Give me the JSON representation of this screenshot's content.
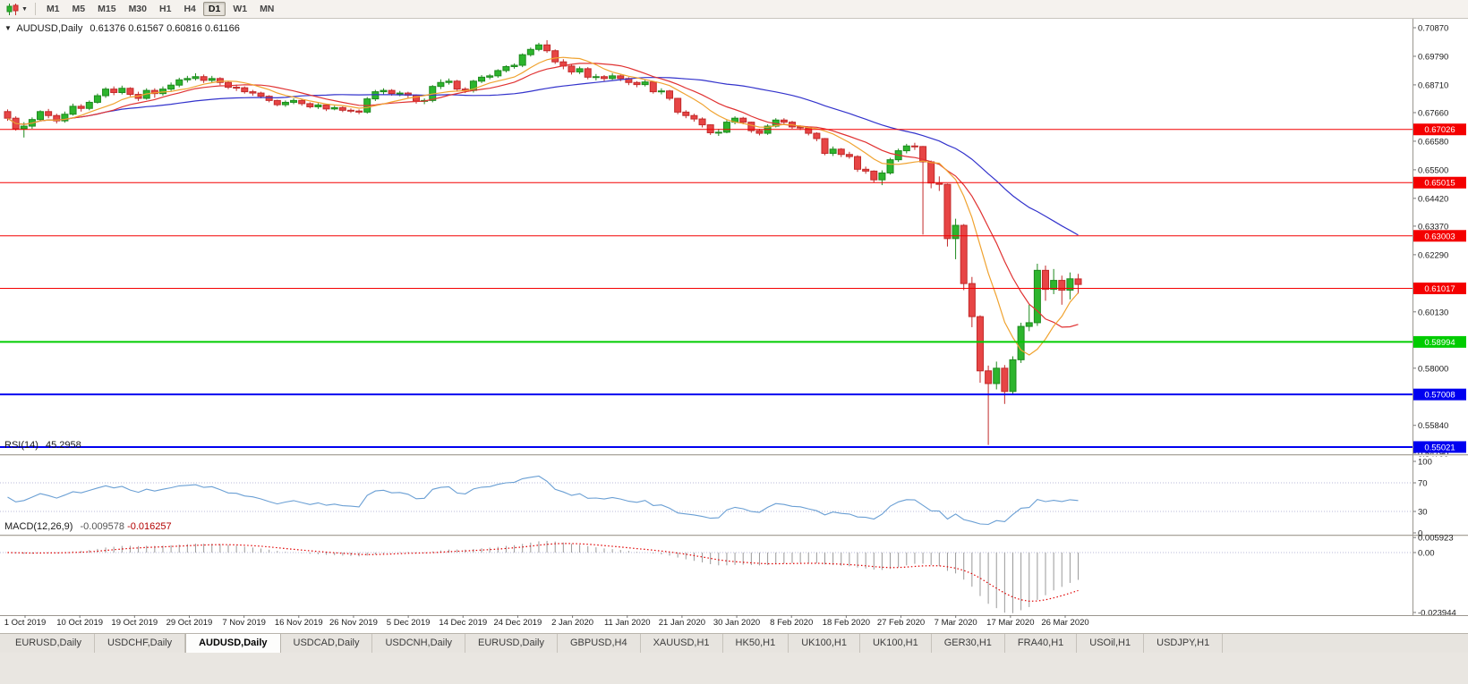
{
  "toolbar": {
    "chart_menu_tooltip": "Charts",
    "timeframes": [
      "M1",
      "M5",
      "M15",
      "M30",
      "H1",
      "H4",
      "D1",
      "W1",
      "MN"
    ],
    "active_timeframe": "D1"
  },
  "chart": {
    "symbol_period": "AUDUSD,Daily",
    "ohlc": {
      "open": "0.61376",
      "high": "0.61567",
      "low": "0.60816",
      "close": "0.61166"
    }
  },
  "rsi_panel": {
    "label": "RSI(14)",
    "value": "45.2958"
  },
  "macd_panel": {
    "label": "MACD(12,26,9)",
    "main_value": "-0.009578",
    "signal_value": "-0.016257"
  },
  "colors": {
    "up_fill": "#2db52d",
    "up_stroke": "#1e8a1e",
    "down_fill": "#e74545",
    "down_stroke": "#c22a2a",
    "rsi_line": "#6a9fd4",
    "rsi_levels": "#b9b9d9",
    "macd_hist": "#9a9a9a",
    "macd_signal": "#e00000",
    "axis_text": "#1a1a1a",
    "separator": "#a8a49d"
  },
  "chart_data": {
    "type": "candlestick",
    "symbol": "AUDUSD",
    "timeframe": "Daily",
    "price_axis": {
      "ticks": [
        "0.70870",
        "0.69790",
        "0.68710",
        "0.67660",
        "0.66580",
        "0.65500",
        "0.64420",
        "0.63370",
        "0.62290",
        "0.60130",
        "0.58000",
        "0.55840",
        "0.54790"
      ]
    },
    "time_axis": {
      "labels": [
        "1 Oct 2019",
        "10 Oct 2019",
        "19 Oct 2019",
        "29 Oct 2019",
        "7 Nov 2019",
        "16 Nov 2019",
        "26 Nov 2019",
        "5 Dec 2019",
        "14 Dec 2019",
        "24 Dec 2019",
        "2 Jan 2020",
        "11 Jan 2020",
        "21 Jan 2020",
        "30 Jan 2020",
        "8 Feb 2020",
        "18 Feb 2020",
        "27 Feb 2020",
        "7 Mar 2020",
        "17 Mar 2020",
        "26 Mar 2020"
      ]
    },
    "levels": [
      {
        "price": 0.67026,
        "label": "0.67026",
        "color": "#f40000",
        "width": 1
      },
      {
        "price": 0.65015,
        "label": "0.65015",
        "color": "#f40000",
        "width": 1
      },
      {
        "price": 0.63003,
        "label": "0.63003",
        "color": "#f40000",
        "width": 1
      },
      {
        "price": 0.61017,
        "label": "0.61017",
        "color": "#f40000",
        "width": 1
      },
      {
        "price": 0.58994,
        "label": "0.58994",
        "color": "#00cc00",
        "width": 2
      },
      {
        "price": 0.57008,
        "label": "0.57008",
        "color": "#0000f0",
        "width": 2
      },
      {
        "price": 0.55021,
        "label": "0.55021",
        "color": "#0000f0",
        "width": 2
      }
    ],
    "moving_averages": [
      {
        "period": 34,
        "color": "#3333cc"
      },
      {
        "period": 13,
        "color": "#e03232"
      },
      {
        "period": 8,
        "color": "#f0a330"
      }
    ],
    "rsi": {
      "period": 14,
      "levels": [
        70,
        30
      ],
      "axis_labels": [
        "100",
        "70",
        "30",
        "0"
      ],
      "axis_values": [
        100,
        70,
        30,
        0
      ]
    },
    "macd": {
      "fast": 12,
      "slow": 26,
      "signal": 9,
      "axis": [
        {
          "v": 0.005923,
          "t": "0.005923"
        },
        {
          "v": 0,
          "t": "0.00"
        },
        {
          "v": -0.023944,
          "t": "-0.023944"
        }
      ]
    },
    "candles": [
      [
        0.677,
        0.6778,
        0.6735,
        0.6745
      ],
      [
        0.6745,
        0.6752,
        0.6698,
        0.6705
      ],
      [
        0.6705,
        0.673,
        0.6672,
        0.6715
      ],
      [
        0.6715,
        0.6748,
        0.6705,
        0.674
      ],
      [
        0.674,
        0.6775,
        0.6735,
        0.677
      ],
      [
        0.677,
        0.678,
        0.6745,
        0.6755
      ],
      [
        0.6755,
        0.6762,
        0.6725,
        0.6735
      ],
      [
        0.6735,
        0.677,
        0.6728,
        0.676
      ],
      [
        0.676,
        0.68,
        0.6755,
        0.679
      ],
      [
        0.679,
        0.6798,
        0.677,
        0.6782
      ],
      [
        0.6782,
        0.6812,
        0.6775,
        0.6805
      ],
      [
        0.6805,
        0.6838,
        0.68,
        0.683
      ],
      [
        0.683,
        0.6862,
        0.6822,
        0.6855
      ],
      [
        0.6855,
        0.6865,
        0.6832,
        0.6842
      ],
      [
        0.6842,
        0.6868,
        0.6835,
        0.6858
      ],
      [
        0.6858,
        0.6862,
        0.6828,
        0.6835
      ],
      [
        0.6835,
        0.6845,
        0.681,
        0.682
      ],
      [
        0.682,
        0.6858,
        0.6815,
        0.685
      ],
      [
        0.685,
        0.6858,
        0.6822,
        0.6838
      ],
      [
        0.6838,
        0.6865,
        0.683,
        0.6855
      ],
      [
        0.6855,
        0.688,
        0.6848,
        0.687
      ],
      [
        0.687,
        0.6898,
        0.6862,
        0.689
      ],
      [
        0.689,
        0.6905,
        0.688,
        0.6895
      ],
      [
        0.6895,
        0.6915,
        0.6888,
        0.6902
      ],
      [
        0.6902,
        0.691,
        0.6878,
        0.6888
      ],
      [
        0.6888,
        0.6905,
        0.688,
        0.6895
      ],
      [
        0.6895,
        0.69,
        0.687,
        0.688
      ],
      [
        0.688,
        0.6885,
        0.6855,
        0.6862
      ],
      [
        0.6862,
        0.6872,
        0.6848,
        0.686
      ],
      [
        0.686,
        0.6865,
        0.6838,
        0.6845
      ],
      [
        0.6845,
        0.6852,
        0.683,
        0.684
      ],
      [
        0.684,
        0.6845,
        0.682,
        0.6828
      ],
      [
        0.6828,
        0.6832,
        0.6805,
        0.6812
      ],
      [
        0.6812,
        0.6815,
        0.679,
        0.6796
      ],
      [
        0.6796,
        0.6812,
        0.6788,
        0.6805
      ],
      [
        0.6805,
        0.682,
        0.6798,
        0.6812
      ],
      [
        0.6812,
        0.6818,
        0.6792,
        0.68
      ],
      [
        0.68,
        0.6805,
        0.6782,
        0.6788
      ],
      [
        0.6788,
        0.6802,
        0.678,
        0.6795
      ],
      [
        0.6795,
        0.6798,
        0.6772,
        0.678
      ],
      [
        0.678,
        0.6792,
        0.6775,
        0.6785
      ],
      [
        0.6785,
        0.679,
        0.6768,
        0.6775
      ],
      [
        0.6775,
        0.6782,
        0.6765,
        0.6772
      ],
      [
        0.6772,
        0.6778,
        0.676,
        0.6768
      ],
      [
        0.6768,
        0.6825,
        0.6762,
        0.6818
      ],
      [
        0.6818,
        0.6852,
        0.681,
        0.6845
      ],
      [
        0.6845,
        0.6858,
        0.6835,
        0.685
      ],
      [
        0.685,
        0.6855,
        0.683,
        0.6838
      ],
      [
        0.6838,
        0.6848,
        0.6828,
        0.684
      ],
      [
        0.684,
        0.6845,
        0.6822,
        0.6832
      ],
      [
        0.6832,
        0.6835,
        0.68,
        0.681
      ],
      [
        0.681,
        0.682,
        0.6798,
        0.6812
      ],
      [
        0.6812,
        0.687,
        0.6805,
        0.6865
      ],
      [
        0.6865,
        0.6892,
        0.6855,
        0.688
      ],
      [
        0.688,
        0.6895,
        0.6872,
        0.6885
      ],
      [
        0.6885,
        0.689,
        0.6845,
        0.6855
      ],
      [
        0.6855,
        0.6862,
        0.684,
        0.685
      ],
      [
        0.685,
        0.689,
        0.6842,
        0.6885
      ],
      [
        0.6885,
        0.6908,
        0.6878,
        0.69
      ],
      [
        0.69,
        0.6912,
        0.6892,
        0.6905
      ],
      [
        0.6905,
        0.693,
        0.6898,
        0.6925
      ],
      [
        0.6925,
        0.6945,
        0.6918,
        0.694
      ],
      [
        0.694,
        0.6952,
        0.6932,
        0.6945
      ],
      [
        0.6945,
        0.699,
        0.6938,
        0.6985
      ],
      [
        0.6985,
        0.7012,
        0.6978,
        0.7005
      ],
      [
        0.7005,
        0.703,
        0.6998,
        0.7022
      ],
      [
        0.7022,
        0.704,
        0.6992,
        0.7
      ],
      [
        0.7,
        0.7005,
        0.695,
        0.6958
      ],
      [
        0.6958,
        0.6968,
        0.693,
        0.6942
      ],
      [
        0.6942,
        0.6948,
        0.691,
        0.692
      ],
      [
        0.692,
        0.694,
        0.6912,
        0.6932
      ],
      [
        0.6932,
        0.6938,
        0.6892,
        0.69
      ],
      [
        0.69,
        0.6912,
        0.6888,
        0.6902
      ],
      [
        0.6902,
        0.6908,
        0.6885,
        0.6895
      ],
      [
        0.6895,
        0.6915,
        0.689,
        0.6905
      ],
      [
        0.6905,
        0.691,
        0.6885,
        0.6895
      ],
      [
        0.6895,
        0.69,
        0.687,
        0.688
      ],
      [
        0.688,
        0.6885,
        0.6862,
        0.6872
      ],
      [
        0.6872,
        0.689,
        0.6865,
        0.6882
      ],
      [
        0.6882,
        0.6885,
        0.6838,
        0.6845
      ],
      [
        0.6845,
        0.6858,
        0.6835,
        0.6848
      ],
      [
        0.6848,
        0.6852,
        0.6812,
        0.682
      ],
      [
        0.682,
        0.6822,
        0.676,
        0.6768
      ],
      [
        0.6768,
        0.6775,
        0.6745,
        0.6755
      ],
      [
        0.6755,
        0.6762,
        0.6732,
        0.6742
      ],
      [
        0.6742,
        0.6748,
        0.671,
        0.672
      ],
      [
        0.672,
        0.6722,
        0.6682,
        0.669
      ],
      [
        0.669,
        0.6705,
        0.6678,
        0.6692
      ],
      [
        0.6692,
        0.6738,
        0.6688,
        0.673
      ],
      [
        0.673,
        0.6752,
        0.6722,
        0.6745
      ],
      [
        0.6745,
        0.675,
        0.6722,
        0.673
      ],
      [
        0.673,
        0.6732,
        0.669,
        0.6698
      ],
      [
        0.6698,
        0.6705,
        0.668,
        0.6688
      ],
      [
        0.6688,
        0.6722,
        0.6682,
        0.6715
      ],
      [
        0.6715,
        0.6745,
        0.671,
        0.6738
      ],
      [
        0.6738,
        0.6745,
        0.672,
        0.673
      ],
      [
        0.673,
        0.6735,
        0.6705,
        0.6712
      ],
      [
        0.6712,
        0.6718,
        0.67,
        0.6708
      ],
      [
        0.6708,
        0.6712,
        0.668,
        0.6688
      ],
      [
        0.6688,
        0.6692,
        0.6658,
        0.6668
      ],
      [
        0.6668,
        0.667,
        0.6605,
        0.6612
      ],
      [
        0.6612,
        0.6638,
        0.6602,
        0.6628
      ],
      [
        0.6628,
        0.6632,
        0.6598,
        0.6608
      ],
      [
        0.6608,
        0.6618,
        0.6592,
        0.66
      ],
      [
        0.66,
        0.6605,
        0.6542,
        0.6552
      ],
      [
        0.6552,
        0.6562,
        0.6535,
        0.6545
      ],
      [
        0.6545,
        0.6548,
        0.6502,
        0.6512
      ],
      [
        0.6512,
        0.6548,
        0.6492,
        0.6538
      ],
      [
        0.6538,
        0.6595,
        0.6532,
        0.6588
      ],
      [
        0.6588,
        0.663,
        0.658,
        0.6622
      ],
      [
        0.6622,
        0.6648,
        0.6612,
        0.664
      ],
      [
        0.664,
        0.6652,
        0.6625,
        0.6638
      ],
      [
        0.6638,
        0.664,
        0.6305,
        0.658
      ],
      [
        0.658,
        0.6585,
        0.648,
        0.65
      ],
      [
        0.65,
        0.6525,
        0.647,
        0.6495
      ],
      [
        0.6495,
        0.6498,
        0.626,
        0.629
      ],
      [
        0.629,
        0.6365,
        0.6212,
        0.634
      ],
      [
        0.634,
        0.6345,
        0.6095,
        0.612
      ],
      [
        0.612,
        0.6145,
        0.5955,
        0.5995
      ],
      [
        0.5995,
        0.6,
        0.5745,
        0.579
      ],
      [
        0.579,
        0.581,
        0.551,
        0.5742
      ],
      [
        0.5742,
        0.5825,
        0.572,
        0.58
      ],
      [
        0.58,
        0.5812,
        0.5665,
        0.5712
      ],
      [
        0.5712,
        0.5845,
        0.57,
        0.5832
      ],
      [
        0.5832,
        0.5972,
        0.582,
        0.5958
      ],
      [
        0.5958,
        0.604,
        0.594,
        0.5972
      ],
      [
        0.5972,
        0.6195,
        0.596,
        0.617
      ],
      [
        0.617,
        0.6188,
        0.6055,
        0.6098
      ],
      [
        0.6098,
        0.6175,
        0.608,
        0.6132
      ],
      [
        0.6132,
        0.615,
        0.604,
        0.6095
      ],
      [
        0.6095,
        0.6162,
        0.606,
        0.6138
      ],
      [
        0.61376,
        0.61567,
        0.60816,
        0.61166
      ]
    ]
  },
  "tabs": {
    "active_index": 2,
    "items": [
      "EURUSD,Daily",
      "USDCHF,Daily",
      "AUDUSD,Daily",
      "USDCAD,Daily",
      "USDCNH,Daily",
      "EURUSD,Daily",
      "GBPUSD,H4",
      "XAUUSD,H1",
      "HK50,H1",
      "UK100,H1",
      "UK100,H1",
      "GER30,H1",
      "FRA40,H1",
      "USOil,H1",
      "USDJPY,H1"
    ]
  }
}
